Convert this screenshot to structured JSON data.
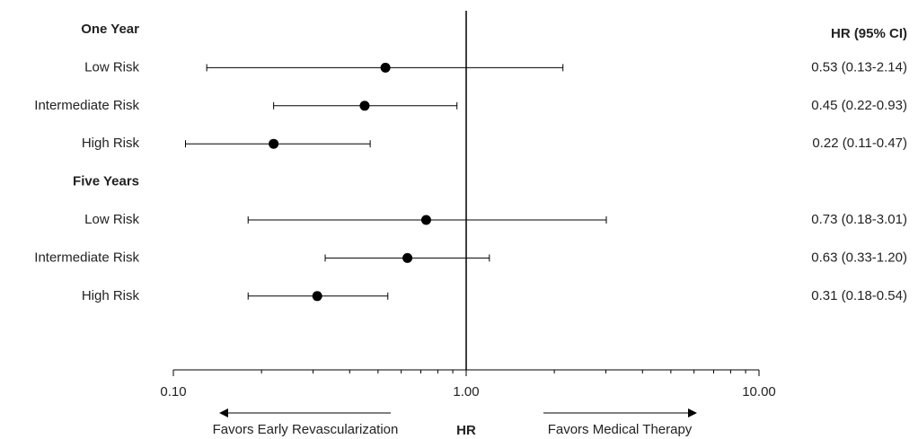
{
  "chart_data": {
    "type": "forest",
    "column_header": "HR (95% CI)",
    "x_label": "HR",
    "annotations": {
      "left": "Favors Early Revascularization",
      "right": "Favors Medical Therapy"
    },
    "log_x": true,
    "xlim": [
      0.1,
      10
    ],
    "xticks": [
      {
        "value": 0.1,
        "label": "0.10"
      },
      {
        "value": 1,
        "label": "1.00"
      },
      {
        "value": 10,
        "label": "10.00"
      }
    ],
    "minor_xticks": [
      0.2,
      0.3,
      0.4,
      0.5,
      0.6,
      0.7,
      0.8,
      0.9,
      2,
      3,
      4,
      5,
      6,
      7,
      8,
      9
    ],
    "reference": 1,
    "color": "#000000",
    "groups": [
      {
        "name": "One Year",
        "categories": [
          "Low Risk",
          "Intermediate Risk",
          "High Risk"
        ],
        "values": [
          0.53,
          0.45,
          0.22
        ],
        "lower": [
          0.13,
          0.22,
          0.11
        ],
        "upper": [
          2.14,
          0.93,
          0.47
        ],
        "value_labels": [
          "0.53 (0.13-2.14)",
          "0.45 (0.22-0.93)",
          "0.22 (0.11-0.47)"
        ]
      },
      {
        "name": "Five Years",
        "categories": [
          "Low Risk",
          "Intermediate Risk",
          "High Risk"
        ],
        "values": [
          0.73,
          0.63,
          0.31
        ],
        "lower": [
          0.18,
          0.33,
          0.18
        ],
        "upper": [
          3.01,
          1.2,
          0.54
        ],
        "value_labels": [
          "0.73 (0.18-3.01)",
          "0.63 (0.33-1.20)",
          "0.31 (0.18-0.54)"
        ]
      }
    ]
  }
}
